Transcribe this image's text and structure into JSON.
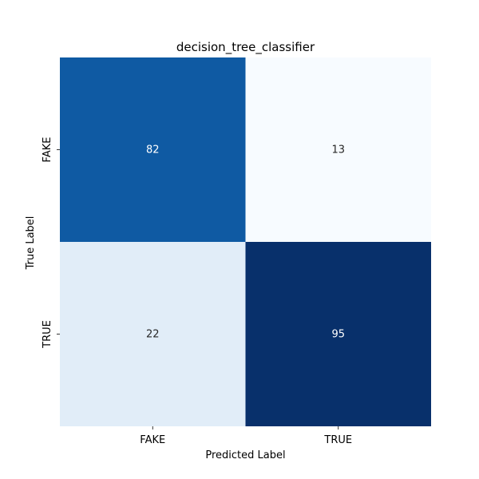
{
  "chart_data": {
    "type": "heatmap",
    "title": "decision_tree_classifier",
    "xlabel": "Predicted Label",
    "ylabel": "True Label",
    "x_categories": [
      "FAKE",
      "TRUE"
    ],
    "y_categories": [
      "FAKE",
      "TRUE"
    ],
    "values": [
      [
        82,
        13
      ],
      [
        22,
        95
      ]
    ],
    "colormap": "Blues",
    "color_range": [
      13,
      95
    ],
    "colorbar": false,
    "grid": false
  }
}
